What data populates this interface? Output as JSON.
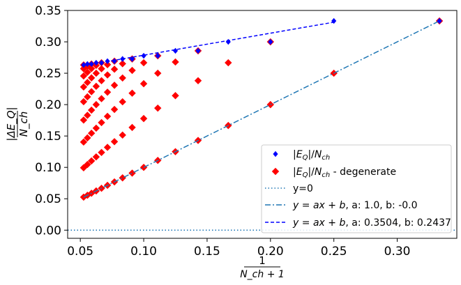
{
  "chart_data": {
    "type": "scatter",
    "xlabel_num": "1",
    "xlabel_den": "N_ch + 1",
    "ylabel_num": "|ΔE_Q|",
    "ylabel_den": "N_ch",
    "xlim": [
      0.04,
      0.347
    ],
    "ylim": [
      -0.013,
      0.35
    ],
    "xticks": [
      0.05,
      0.1,
      0.15,
      0.2,
      0.25,
      0.3
    ],
    "xtick_labels": [
      "0.05",
      "0.10",
      "0.15",
      "0.20",
      "0.25",
      "0.30"
    ],
    "yticks": [
      0.0,
      0.05,
      0.1,
      0.15,
      0.2,
      0.25,
      0.3,
      0.35
    ],
    "ytick_labels": [
      "0.00",
      "0.05",
      "0.10",
      "0.15",
      "0.20",
      "0.25",
      "0.30",
      "0.35"
    ],
    "grid": false,
    "legend_position": "bottom-right",
    "colors": {
      "eq": "#0000ff",
      "degenerate": "#ff0000",
      "zero_line": "#1f77b4",
      "fit1": "#1f77b4",
      "fit2": "#0000ff"
    },
    "series": [
      {
        "name": "|E_Q|/N_ch",
        "kind": "diamond",
        "x": [
          0.3333,
          0.25,
          0.2,
          0.1667,
          0.1429,
          0.125,
          0.1111,
          0.1,
          0.0909,
          0.0833,
          0.0769,
          0.0714,
          0.0667,
          0.0625,
          0.0588,
          0.0556,
          0.0526
        ],
        "y": [
          0.3333,
          0.3333,
          0.3,
          0.3,
          0.2857,
          0.2857,
          0.2778,
          0.2778,
          0.2727,
          0.2727,
          0.2692,
          0.2692,
          0.2667,
          0.2667,
          0.2647,
          0.2647,
          0.2632
        ]
      },
      {
        "name": "|E_Q|/N_ch - degenerate",
        "kind": "diamond-large",
        "x": [
          0.3333,
          0.25,
          0.2,
          0.1667,
          0.1429,
          0.125,
          0.1111,
          0.1,
          0.0909,
          0.0833,
          0.0769,
          0.0714,
          0.0667,
          0.0625,
          0.0588,
          0.0556,
          0.0526,
          0.2,
          0.1667,
          0.1429,
          0.125,
          0.1111,
          0.1,
          0.0909,
          0.0833,
          0.0769,
          0.0714,
          0.0667,
          0.0625,
          0.0588,
          0.0556,
          0.0526,
          0.1429,
          0.125,
          0.1111,
          0.1,
          0.0909,
          0.0833,
          0.0769,
          0.0714,
          0.0667,
          0.0625,
          0.0588,
          0.0556,
          0.0526,
          0.1111,
          0.1,
          0.0909,
          0.0833,
          0.0769,
          0.0714,
          0.0667,
          0.0625,
          0.0588,
          0.0556,
          0.0526,
          0.0909,
          0.0833,
          0.0769,
          0.0714,
          0.0667,
          0.0625,
          0.0588,
          0.0556,
          0.0526,
          0.0769,
          0.0714,
          0.0667,
          0.0625,
          0.0588,
          0.0556,
          0.0526,
          0.0667,
          0.0625,
          0.0588,
          0.0556,
          0.0526,
          0.0588,
          0.0556,
          0.0526,
          0.0526
        ],
        "y": [
          0.3333,
          0.25,
          0.2,
          0.1667,
          0.1429,
          0.125,
          0.1111,
          0.1,
          0.0909,
          0.0833,
          0.0769,
          0.0714,
          0.0667,
          0.0625,
          0.0588,
          0.0556,
          0.0526,
          0.3,
          0.2667,
          0.2381,
          0.2143,
          0.1944,
          0.1778,
          0.1636,
          0.1515,
          0.141,
          0.1319,
          0.1238,
          0.1167,
          0.1103,
          0.1046,
          0.0994,
          0.2857,
          0.2679,
          0.25,
          0.2333,
          0.2182,
          0.2045,
          0.1923,
          0.1813,
          0.1714,
          0.1625,
          0.1544,
          0.147,
          0.1404,
          0.2778,
          0.2667,
          0.2545,
          0.2424,
          0.2308,
          0.2198,
          0.2095,
          0.2,
          0.1912,
          0.183,
          0.1754,
          0.2727,
          0.2652,
          0.2564,
          0.2473,
          0.2381,
          0.2292,
          0.2206,
          0.2124,
          0.2047,
          0.2692,
          0.2637,
          0.2571,
          0.25,
          0.2426,
          0.2353,
          0.2281,
          0.2667,
          0.2625,
          0.2574,
          0.2516,
          0.2456,
          0.2647,
          0.2614,
          0.2573,
          0.2632
        ]
      },
      {
        "name": "y=0",
        "kind": "hline",
        "y": 0
      },
      {
        "name": "y = ax + b, a: 1.0, b: -0.0",
        "kind": "line",
        "a": 1.0,
        "b": -0.0,
        "x_range": [
          0.0526,
          0.3333
        ]
      },
      {
        "name": "y = ax + b, a: 0.3504, b: 0.2437",
        "kind": "line",
        "a": 0.3504,
        "b": 0.2437,
        "x_range": [
          0.0526,
          0.25
        ]
      }
    ],
    "legend": {
      "entries": [
        {
          "pre": "|",
          "it": "E",
          "sub": "Q",
          "post": "|/",
          "it2": "N",
          "sub2": "ch",
          "tail": ""
        },
        {
          "pre": "|",
          "it": "E",
          "sub": "Q",
          "post": "|/",
          "it2": "N",
          "sub2": "ch",
          "tail": " - degenerate"
        },
        {
          "plain": "y=0"
        },
        {
          "formula": true,
          "tail": ", a: 1.0, b: -0.0"
        },
        {
          "formula": true,
          "tail": ", a: 0.3504, b: 0.2437"
        }
      ]
    }
  }
}
